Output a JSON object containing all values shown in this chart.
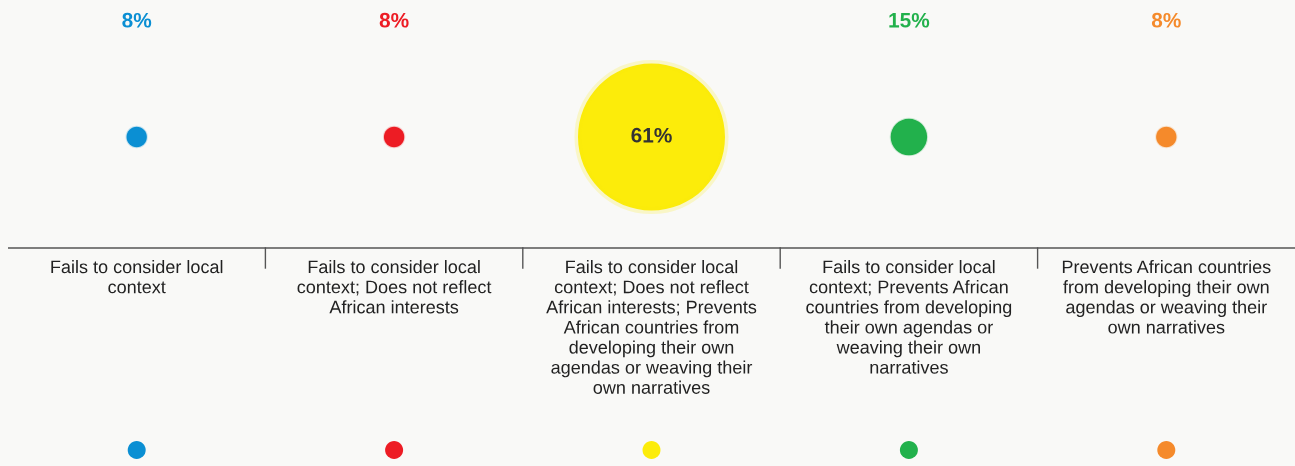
{
  "chart_data": {
    "type": "other",
    "categories": [
      "Fails to consider local context",
      "Fails to consider local context; Does not reflect African interests",
      "Fails to consider local context; Does not reflect African interests; Prevents African countries from developing their own agendas or weaving their own narratives",
      "Fails to consider local context; Prevents African countries from developing their own agendas or weaving their own narratives",
      "Prevents African countries from developing their own agendas or weaving their own narratives"
    ],
    "values": [
      8,
      8,
      61,
      15,
      8
    ],
    "value_labels": [
      "8%",
      "8%",
      "61%",
      "15%",
      "8%"
    ],
    "colors": [
      "#0b8fd3",
      "#ed1c24",
      "#fcec0a",
      "#22b14c",
      "#f58a2b"
    ]
  }
}
